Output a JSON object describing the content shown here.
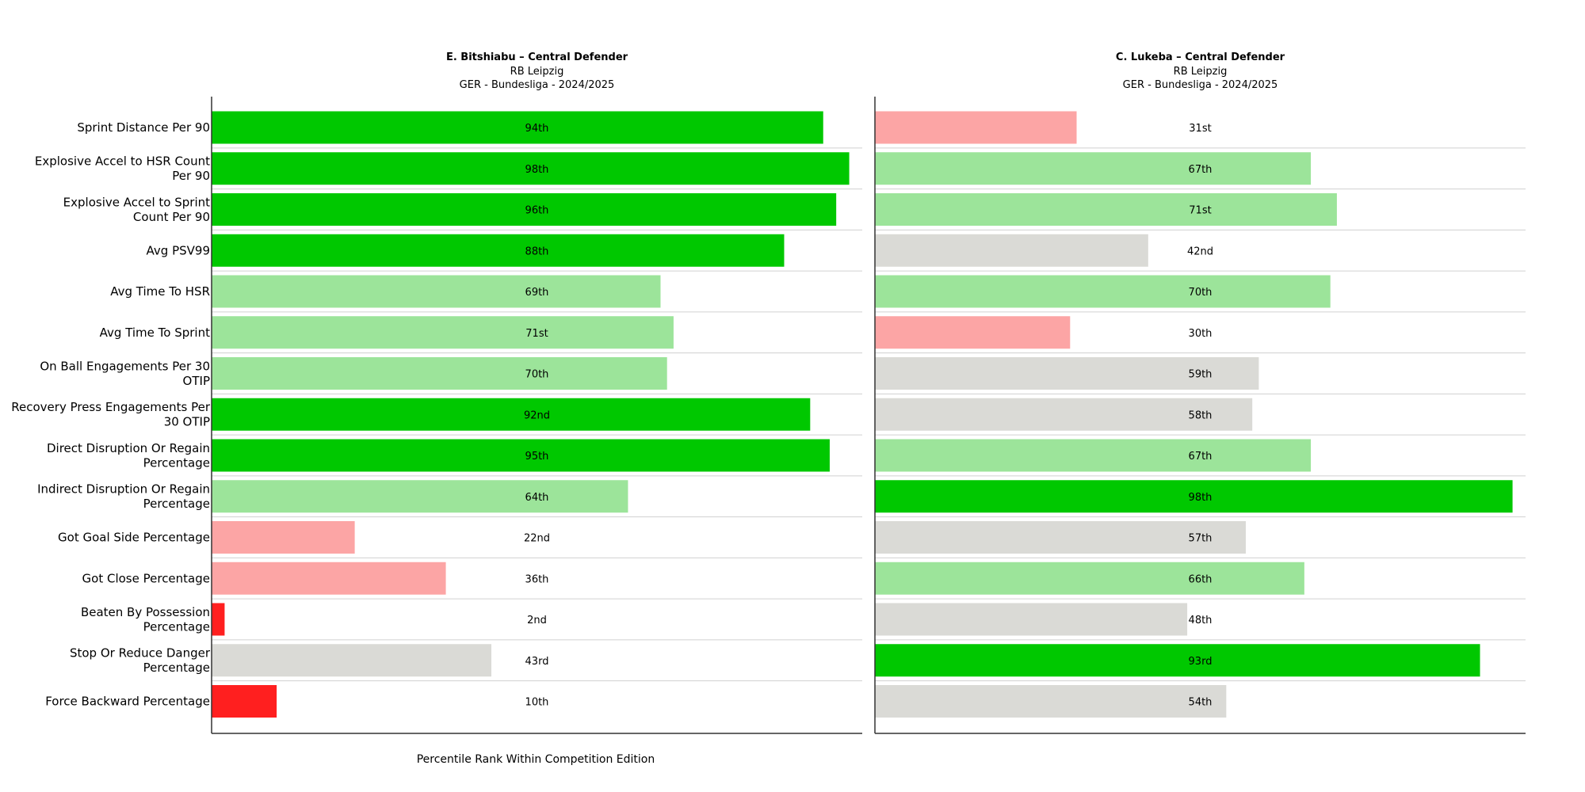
{
  "chart_data": {
    "type": "bar",
    "orientation": "horizontal",
    "categories": [
      [
        "Sprint Distance Per 90"
      ],
      [
        "Explosive Accel to HSR Count",
        "Per 90"
      ],
      [
        "Explosive Accel to Sprint",
        "Count Per 90"
      ],
      [
        "Avg PSV99"
      ],
      [
        "Avg Time To HSR"
      ],
      [
        "Avg Time To Sprint"
      ],
      [
        "On Ball Engagements Per 30",
        "OTIP"
      ],
      [
        "Recovery Press Engagements Per",
        "30 OTIP"
      ],
      [
        "Direct Disruption Or Regain",
        "Percentage"
      ],
      [
        "Indirect Disruption Or Regain",
        "Percentage"
      ],
      [
        "Got Goal Side Percentage"
      ],
      [
        "Got Close Percentage"
      ],
      [
        "Beaten By Possession",
        "Percentage"
      ],
      [
        "Stop Or Reduce Danger",
        "Percentage"
      ],
      [
        "Force Backward Percentage"
      ]
    ],
    "xlabel": "Percentile Rank Within Competition Edition",
    "xlim": [
      0,
      100
    ],
    "series": [
      {
        "title_lines": [
          "E. Bitshiabu – Central Defender",
          "RB Leipzig",
          "GER - Bundesliga - 2024/2025"
        ],
        "values": [
          94,
          98,
          96,
          88,
          69,
          71,
          70,
          92,
          95,
          64,
          22,
          36,
          2,
          43,
          10
        ],
        "labels": [
          "94th",
          "98th",
          "96th",
          "88th",
          "69th",
          "71st",
          "70th",
          "92nd",
          "95th",
          "64th",
          "22nd",
          "36th",
          "2nd",
          "43rd",
          "10th"
        ]
      },
      {
        "title_lines": [
          "C. Lukeba – Central Defender",
          "RB Leipzig",
          "GER - Bundesliga - 2024/2025"
        ],
        "values": [
          31,
          67,
          71,
          42,
          70,
          30,
          59,
          58,
          67,
          98,
          57,
          66,
          48,
          93,
          54
        ],
        "labels": [
          "31st",
          "67th",
          "71st",
          "42nd",
          "70th",
          "30th",
          "59th",
          "58th",
          "67th",
          "98th",
          "57th",
          "66th",
          "48th",
          "93rd",
          "54th"
        ]
      }
    ],
    "color_scale": {
      "elite": "#00c800",
      "good": "#9ce49a",
      "average": "#dadad6",
      "poor": "#fca5a5",
      "very_poor": "#ff1f1f"
    }
  }
}
